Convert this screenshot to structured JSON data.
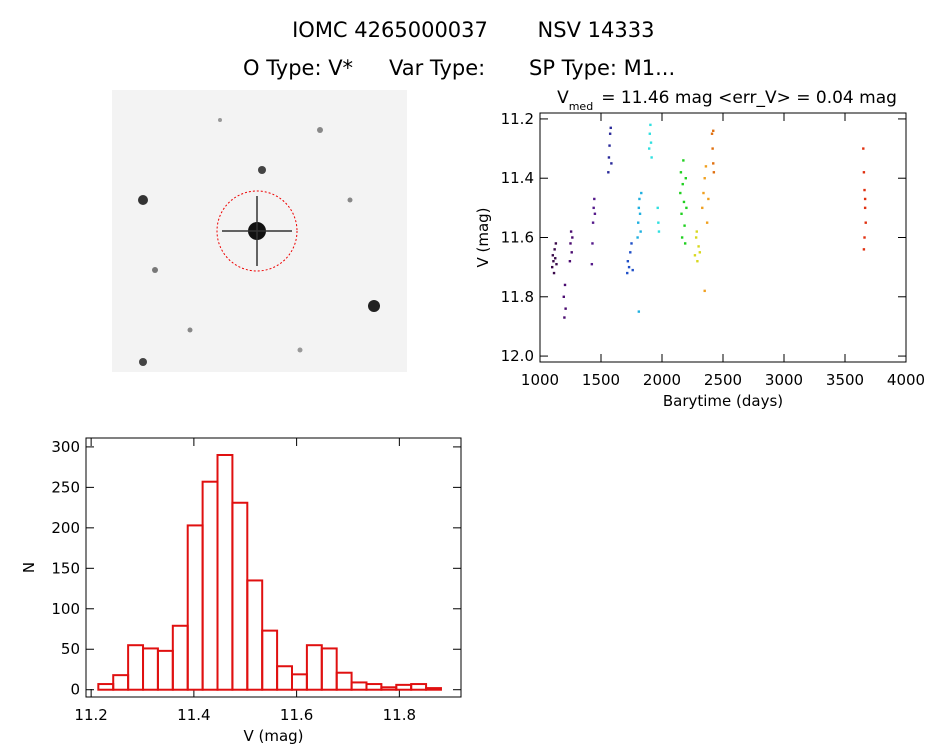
{
  "header": {
    "line1": [
      "IOMC 4265000037",
      "NSV 14333"
    ],
    "line2": [
      "O Type: V*",
      "Var Type:",
      "SP Type: M1..."
    ]
  },
  "chart_data": [
    {
      "type": "scatter",
      "title": "V",
      "title_sub": "med",
      "title_rest": "= 11.46 mag <err_V> = 0.04 mag",
      "xlabel": "Barytime (days)",
      "ylabel": "V (mag)",
      "xlim": [
        1000,
        4000
      ],
      "ylim": [
        11.18,
        12.02
      ],
      "y_inverted": true,
      "xticks": [
        1000,
        1500,
        2000,
        2500,
        3000,
        3500,
        4000
      ],
      "yticks": [
        11.2,
        11.4,
        11.6,
        11.8,
        {
          "value": 12,
          "label": "12.0"
        }
      ],
      "series": [
        {
          "color": "#3a0a4a",
          "x": [
            1100,
            1105,
            1110,
            1115,
            1120,
            1125,
            1130,
            1135
          ],
          "values": [
            11.7,
            11.66,
            11.68,
            11.72,
            11.64,
            11.67,
            11.62,
            11.69
          ]
        },
        {
          "color": "#4b0c70",
          "x": [
            1195,
            1200,
            1205,
            1210,
            1245,
            1250,
            1255,
            1260,
            1265
          ],
          "values": [
            11.8,
            11.87,
            11.76,
            11.84,
            11.68,
            11.62,
            11.58,
            11.65,
            11.6
          ]
        },
        {
          "color": "#551a8b",
          "x": [
            1425,
            1430,
            1435,
            1440,
            1445,
            1450
          ],
          "values": [
            11.69,
            11.62,
            11.55,
            11.5,
            11.47,
            11.52
          ]
        },
        {
          "color": "#2a2a9a",
          "x": [
            1560,
            1565,
            1570,
            1575,
            1580,
            1585
          ],
          "values": [
            11.38,
            11.33,
            11.29,
            11.25,
            11.23,
            11.35
          ]
        },
        {
          "color": "#2050c8",
          "x": [
            1715,
            1720,
            1730,
            1740,
            1750,
            1760
          ],
          "values": [
            11.72,
            11.68,
            11.7,
            11.65,
            11.62,
            11.71
          ]
        },
        {
          "color": "#20b0e0",
          "x": [
            1800,
            1805,
            1810,
            1815,
            1820,
            1825,
            1830,
            1810
          ],
          "values": [
            11.6,
            11.55,
            11.5,
            11.47,
            11.52,
            11.58,
            11.45,
            11.85
          ]
        },
        {
          "color": "#30e0e0",
          "x": [
            1895,
            1900,
            1905,
            1910,
            1915,
            1965,
            1970,
            1975
          ],
          "values": [
            11.3,
            11.25,
            11.22,
            11.28,
            11.33,
            11.5,
            11.55,
            11.58
          ]
        },
        {
          "color": "#20d020",
          "x": [
            2150,
            2155,
            2160,
            2165,
            2170,
            2175,
            2180,
            2185,
            2190,
            2195,
            2200
          ],
          "values": [
            11.45,
            11.38,
            11.52,
            11.6,
            11.42,
            11.34,
            11.48,
            11.56,
            11.62,
            11.4,
            11.5
          ]
        },
        {
          "color": "#d8d820",
          "x": [
            2270,
            2280,
            2290,
            2300,
            2285,
            2310
          ],
          "values": [
            11.66,
            11.6,
            11.68,
            11.63,
            11.58,
            11.65
          ]
        },
        {
          "color": "#f0a020",
          "x": [
            2330,
            2340,
            2350,
            2360,
            2370,
            2380,
            2350
          ],
          "values": [
            11.5,
            11.45,
            11.4,
            11.36,
            11.55,
            11.47,
            11.78
          ]
        },
        {
          "color": "#e07010",
          "x": [
            2410,
            2415,
            2420,
            2425,
            2420
          ],
          "values": [
            11.25,
            11.3,
            11.35,
            11.38,
            11.24
          ]
        },
        {
          "color": "#e03010",
          "x": [
            3650,
            3655,
            3660,
            3665,
            3670,
            3660,
            3655,
            3665
          ],
          "values": [
            11.3,
            11.38,
            11.44,
            11.5,
            11.55,
            11.6,
            11.64,
            11.47
          ]
        }
      ]
    },
    {
      "type": "histogram",
      "xlabel": "V (mag)",
      "ylabel": "N",
      "color": "#e01010",
      "xlim": [
        11.19,
        11.92
      ],
      "ylim": [
        -9,
        311
      ],
      "xticks": [
        11.2,
        11.4,
        11.6,
        11.8
      ],
      "yticks": [
        0,
        50,
        100,
        150,
        200,
        250,
        300
      ],
      "bins": [
        11.214,
        11.243,
        11.272,
        11.301,
        11.33,
        11.359,
        11.388,
        11.417,
        11.446,
        11.475,
        11.504,
        11.533,
        11.562,
        11.591,
        11.62,
        11.649,
        11.678,
        11.707,
        11.736,
        11.765,
        11.794,
        11.823,
        11.852,
        11.881
      ],
      "values": [
        7,
        18,
        55,
        51,
        48,
        79,
        203,
        257,
        290,
        231,
        135,
        73,
        29,
        19,
        55,
        51,
        21,
        9,
        7,
        3,
        6,
        7,
        2
      ]
    }
  ]
}
